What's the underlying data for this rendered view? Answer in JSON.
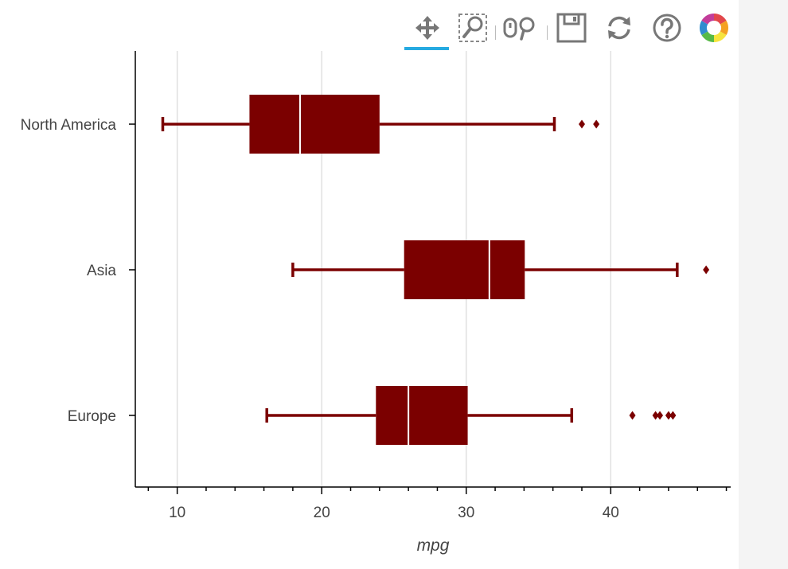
{
  "toolbar": {
    "tools": [
      {
        "name": "pan-icon",
        "active": true
      },
      {
        "name": "box-zoom-icon"
      },
      {
        "name": "wheel-zoom-icon"
      },
      {
        "name": "save-icon"
      },
      {
        "name": "reset-icon"
      },
      {
        "name": "help-icon"
      },
      {
        "name": "bokeh-logo"
      }
    ],
    "active_color": "#26aae1"
  },
  "chart_data": {
    "type": "box",
    "orientation": "horizontal",
    "categories": [
      "North America",
      "Asia",
      "Europe"
    ],
    "xlabel": "mpg",
    "ylabel": "",
    "xlim": [
      7.1,
      48.3
    ],
    "xticks": [
      10,
      20,
      30,
      40
    ],
    "grid": {
      "x": true,
      "y": false
    },
    "color": "#7b0000",
    "boxes": [
      {
        "category": "North America",
        "lower_whisker": 9,
        "q1": 15,
        "median": 18.5,
        "q3": 24,
        "upper_whisker": 36.1,
        "outliers": [
          38,
          39
        ]
      },
      {
        "category": "Asia",
        "lower_whisker": 18,
        "q1": 25.7,
        "median": 31.6,
        "q3": 34.05,
        "upper_whisker": 44.6,
        "outliers": [
          46.6
        ]
      },
      {
        "category": "Europe",
        "lower_whisker": 16.2,
        "q1": 23.75,
        "median": 26,
        "q3": 30.1,
        "upper_whisker": 37.3,
        "outliers": [
          41.5,
          43.1,
          43.4,
          44,
          44.3
        ]
      }
    ]
  }
}
